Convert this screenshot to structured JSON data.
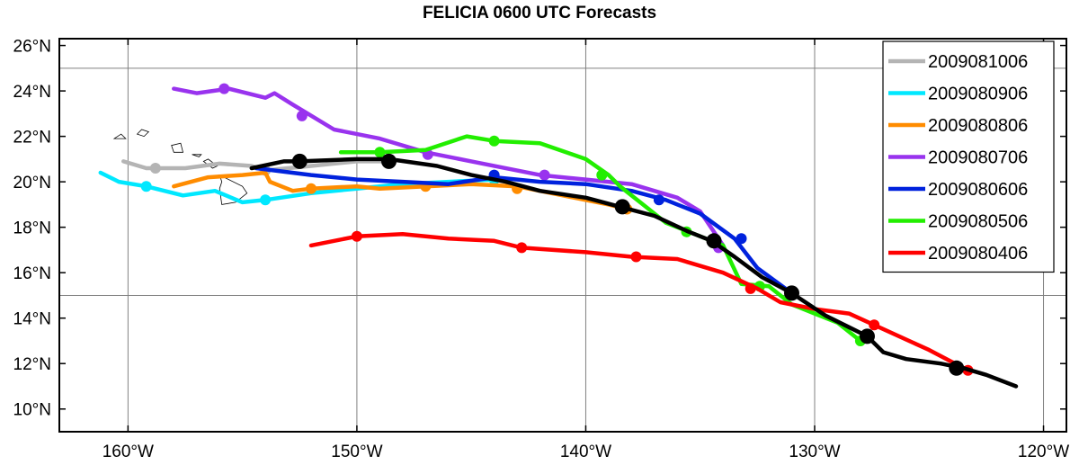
{
  "chart_data": {
    "type": "line",
    "title": "FELICIA 0600 UTC Forecasts",
    "xlabel": "",
    "ylabel": "",
    "xlim": [
      -163,
      -119
    ],
    "ylim": [
      9,
      26.3
    ],
    "grid": true,
    "legend_position": "top-right",
    "x_ticks": [
      {
        "value": -160,
        "label": "160°W"
      },
      {
        "value": -150,
        "label": "150°W"
      },
      {
        "value": -140,
        "label": "140°W"
      },
      {
        "value": -130,
        "label": "130°W"
      },
      {
        "value": -120,
        "label": "120°W"
      }
    ],
    "y_ticks": [
      {
        "value": 10,
        "label": "10°N"
      },
      {
        "value": 12,
        "label": "12°N"
      },
      {
        "value": 14,
        "label": "14°N"
      },
      {
        "value": 16,
        "label": "16°N"
      },
      {
        "value": 18,
        "label": "18°N"
      },
      {
        "value": 20,
        "label": "20°N"
      },
      {
        "value": 22,
        "label": "22°N"
      },
      {
        "value": 24,
        "label": "24°N"
      },
      {
        "value": 26,
        "label": "26°N"
      }
    ],
    "series": [
      {
        "name": "2009081006",
        "color": "#b4b4b4",
        "points": [
          [
            -160.2,
            20.9
          ],
          [
            -159.2,
            20.6
          ],
          [
            -157.5,
            20.6
          ],
          [
            -156,
            20.8
          ],
          [
            -154.6,
            20.7
          ],
          [
            -154,
            20.5
          ],
          [
            -152,
            20.7
          ],
          [
            -150,
            20.9
          ],
          [
            -148.6,
            20.9
          ]
        ],
        "markers": [
          [
            -158.8,
            20.6
          ],
          [
            -154,
            20.5
          ],
          [
            -148.6,
            20.9
          ]
        ]
      },
      {
        "name": "2009080906",
        "color": "#00e8ff",
        "points": [
          [
            -161.2,
            20.4
          ],
          [
            -160.4,
            20
          ],
          [
            -159.2,
            19.8
          ],
          [
            -157.6,
            19.4
          ],
          [
            -156.2,
            19.6
          ],
          [
            -155,
            19.1
          ],
          [
            -154,
            19.2
          ],
          [
            -152,
            19.5
          ],
          [
            -150,
            19.7
          ],
          [
            -148,
            19.9
          ],
          [
            -146,
            20
          ],
          [
            -144,
            20.1
          ]
        ],
        "markers": [
          [
            -159.2,
            19.8
          ],
          [
            -154,
            19.2
          ],
          [
            -144,
            20.1
          ]
        ]
      },
      {
        "name": "2009080806",
        "color": "#ff8c00",
        "points": [
          [
            -158,
            19.8
          ],
          [
            -156.5,
            20.2
          ],
          [
            -155,
            20.3
          ],
          [
            -154,
            20.4
          ],
          [
            -153.8,
            20
          ],
          [
            -152.8,
            19.6
          ],
          [
            -152,
            19.7
          ],
          [
            -150,
            19.8
          ],
          [
            -149,
            19.7
          ],
          [
            -147,
            19.8
          ],
          [
            -145,
            19.9
          ],
          [
            -143,
            19.8
          ],
          [
            -141,
            19.4
          ],
          [
            -139,
            19
          ],
          [
            -138.2,
            18.8
          ]
        ],
        "markers": [
          [
            -152,
            19.7
          ],
          [
            -147,
            19.8
          ],
          [
            -143,
            19.7
          ],
          [
            -138.2,
            18.8
          ]
        ]
      },
      {
        "name": "2009080706",
        "color": "#9933ee",
        "points": [
          [
            -158,
            24.1
          ],
          [
            -157,
            23.9
          ],
          [
            -155.6,
            24.1
          ],
          [
            -154,
            23.7
          ],
          [
            -153.6,
            23.9
          ],
          [
            -152.8,
            23.4
          ],
          [
            -151,
            22.3
          ],
          [
            -149,
            21.9
          ],
          [
            -147,
            21.3
          ],
          [
            -145,
            20.9
          ],
          [
            -142,
            20.3
          ],
          [
            -140,
            20.1
          ],
          [
            -138,
            19.9
          ],
          [
            -136,
            19.3
          ],
          [
            -135,
            18.7
          ],
          [
            -134,
            17.2
          ]
        ],
        "markers": [
          [
            -155.8,
            24.1
          ],
          [
            -152.4,
            22.9
          ],
          [
            -146.9,
            21.2
          ],
          [
            -141.8,
            20.3
          ],
          [
            -134.2,
            17.1
          ]
        ]
      },
      {
        "name": "2009080606",
        "color": "#0022dd",
        "points": [
          [
            -154.4,
            20.6
          ],
          [
            -152,
            20.3
          ],
          [
            -150,
            20.1
          ],
          [
            -148,
            20
          ],
          [
            -146,
            19.9
          ],
          [
            -144,
            20.2
          ],
          [
            -142,
            20
          ],
          [
            -140,
            19.9
          ],
          [
            -138,
            19.6
          ],
          [
            -136.5,
            19.2
          ],
          [
            -135,
            18.6
          ],
          [
            -133.5,
            17.5
          ],
          [
            -132.5,
            16.2
          ],
          [
            -131,
            15.1
          ]
        ],
        "markers": [
          [
            -144,
            20.3
          ],
          [
            -136.8,
            19.2
          ],
          [
            -133.2,
            17.5
          ],
          [
            -131,
            15.1
          ]
        ]
      },
      {
        "name": "2009080506",
        "color": "#22ee00",
        "points": [
          [
            -150.7,
            21.3
          ],
          [
            -149,
            21.3
          ],
          [
            -147,
            21.4
          ],
          [
            -145.2,
            22
          ],
          [
            -144,
            21.8
          ],
          [
            -142,
            21.7
          ],
          [
            -140,
            21
          ],
          [
            -139,
            20.3
          ],
          [
            -138.5,
            19.8
          ],
          [
            -137.5,
            19
          ],
          [
            -136.5,
            18.2
          ],
          [
            -135.5,
            17.8
          ],
          [
            -134.5,
            17.4
          ],
          [
            -134,
            17.2
          ],
          [
            -133.2,
            15.5
          ],
          [
            -132,
            15.4
          ],
          [
            -131,
            14.6
          ],
          [
            -130,
            14.2
          ],
          [
            -129,
            13.8
          ],
          [
            -128,
            13
          ]
        ],
        "markers": [
          [
            -149,
            21.3
          ],
          [
            -144,
            21.8
          ],
          [
            -139.3,
            20.3
          ],
          [
            -135.6,
            17.8
          ],
          [
            -132.4,
            15.4
          ],
          [
            -128,
            13
          ]
        ]
      },
      {
        "name": "2009080406",
        "color": "#ff0000",
        "points": [
          [
            -152,
            17.2
          ],
          [
            -150,
            17.6
          ],
          [
            -148,
            17.7
          ],
          [
            -146,
            17.5
          ],
          [
            -144,
            17.4
          ],
          [
            -142.8,
            17.1
          ],
          [
            -140,
            16.9
          ],
          [
            -138,
            16.7
          ],
          [
            -136,
            16.6
          ],
          [
            -134,
            16
          ],
          [
            -132.5,
            15.3
          ],
          [
            -131.5,
            14.7
          ],
          [
            -130,
            14.4
          ],
          [
            -128.5,
            14.2
          ],
          [
            -127.4,
            13.7
          ],
          [
            -125,
            12.6
          ],
          [
            -123.3,
            11.7
          ]
        ],
        "markers": [
          [
            -150,
            17.6
          ],
          [
            -142.8,
            17.1
          ],
          [
            -137.8,
            16.7
          ],
          [
            -132.8,
            15.3
          ],
          [
            -127.4,
            13.7
          ],
          [
            -123.3,
            11.7
          ]
        ]
      },
      {
        "name": "",
        "color": "#000000",
        "points": [
          [
            -154.6,
            20.6
          ],
          [
            -153.2,
            20.9
          ],
          [
            -152.5,
            20.9
          ],
          [
            -150,
            21
          ],
          [
            -148.6,
            21
          ],
          [
            -146.5,
            20.7
          ],
          [
            -145,
            20.3
          ],
          [
            -143.5,
            20
          ],
          [
            -142,
            19.6
          ],
          [
            -140,
            19.3
          ],
          [
            -138.5,
            18.9
          ],
          [
            -137,
            18.5
          ],
          [
            -135.5,
            17.8
          ],
          [
            -134.5,
            17.4
          ],
          [
            -133.5,
            16.7
          ],
          [
            -132.3,
            15.8
          ],
          [
            -131,
            15.1
          ],
          [
            -129.5,
            14.1
          ],
          [
            -128.3,
            13.5
          ],
          [
            -127.7,
            13.2
          ],
          [
            -127,
            12.5
          ],
          [
            -126,
            12.2
          ],
          [
            -124.5,
            12
          ],
          [
            -123.5,
            11.8
          ],
          [
            -122.5,
            11.5
          ],
          [
            -121.2,
            11
          ]
        ],
        "markers": [
          [
            -152.5,
            20.9
          ],
          [
            -148.6,
            20.9
          ],
          [
            -138.4,
            18.9
          ],
          [
            -134.4,
            17.4
          ],
          [
            -131,
            15.1
          ],
          [
            -127.7,
            13.2
          ],
          [
            -123.8,
            11.8
          ]
        ],
        "bigMarkers": true
      }
    ],
    "land": [
      [
        [
          -160.6,
          21.9
        ],
        [
          -160.3,
          22.1
        ],
        [
          -160.1,
          21.9
        ],
        [
          -160.6,
          21.9
        ]
      ],
      [
        [
          -159.6,
          22.1
        ],
        [
          -159.4,
          22.3
        ],
        [
          -159.1,
          22.2
        ],
        [
          -159.3,
          22
        ],
        [
          -159.6,
          22.1
        ]
      ],
      [
        [
          -158.1,
          21.6
        ],
        [
          -157.7,
          21.7
        ],
        [
          -157.6,
          21.3
        ],
        [
          -158,
          21.3
        ],
        [
          -158.1,
          21.6
        ]
      ],
      [
        [
          -157.2,
          21.2
        ],
        [
          -156.8,
          21.2
        ],
        [
          -156.9,
          21.1
        ],
        [
          -157.2,
          21.2
        ]
      ],
      [
        [
          -156.7,
          20.9
        ],
        [
          -156.5,
          21
        ],
        [
          -156.1,
          20.7
        ],
        [
          -156.3,
          20.6
        ],
        [
          -156.7,
          20.9
        ]
      ],
      [
        [
          -156,
          20.3
        ],
        [
          -155.8,
          20.2
        ],
        [
          -155,
          19.8
        ],
        [
          -154.8,
          19.5
        ],
        [
          -155.3,
          19.1
        ],
        [
          -155.9,
          19
        ],
        [
          -156,
          19.7
        ],
        [
          -155.9,
          20
        ],
        [
          -156,
          20.3
        ]
      ]
    ]
  }
}
